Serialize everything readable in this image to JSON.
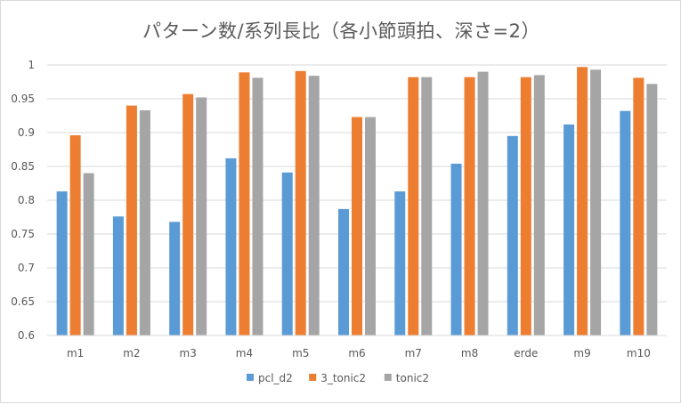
{
  "chart_data": {
    "type": "bar",
    "title": "パターン数/系列長比（各小節頭拍、深さ=2）",
    "xlabel": "",
    "ylabel": "",
    "ylim": [
      0.6,
      1
    ],
    "yticks": [
      "0.6",
      "0.65",
      "0.7",
      "0.75",
      "0.8",
      "0.85",
      "0.9",
      "0.95",
      "1"
    ],
    "yticks_values": [
      0.6,
      0.65,
      0.7,
      0.75,
      0.8,
      0.85,
      0.9,
      0.95,
      1.0
    ],
    "grid": true,
    "legend_position": "bottom",
    "categories": [
      "m1",
      "m2",
      "m3",
      "m4",
      "m5",
      "m6",
      "m7",
      "m8",
      "erde",
      "m9",
      "m10"
    ],
    "series": [
      {
        "name": "pcl_d2",
        "color": "#5B9BD5",
        "values": [
          0.813,
          0.776,
          0.768,
          0.862,
          0.841,
          0.787,
          0.813,
          0.854,
          0.895,
          0.912,
          0.932
        ]
      },
      {
        "name": "3_tonic2",
        "color": "#ED7D31",
        "values": [
          0.896,
          0.94,
          0.957,
          0.989,
          0.991,
          0.923,
          0.982,
          0.982,
          0.982,
          0.997,
          0.981
        ]
      },
      {
        "name": "tonic2",
        "color": "#A5A5A5",
        "values": [
          0.84,
          0.933,
          0.952,
          0.981,
          0.984,
          0.923,
          0.982,
          0.99,
          0.985,
          0.993,
          0.972
        ]
      }
    ]
  }
}
